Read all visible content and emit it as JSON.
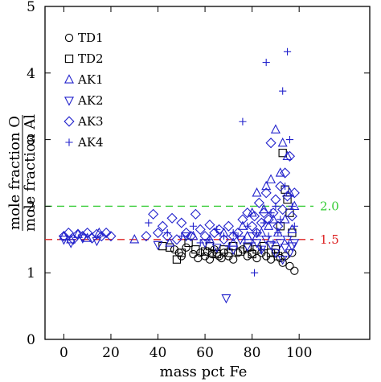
{
  "chart_data": {
    "type": "scatter",
    "xlabel": "mass pct Fe",
    "ylabel_numerator": "mole fraction O",
    "ylabel_denominator": "mole fraction Al",
    "xlim": [
      -8,
      130
    ],
    "ylim": [
      0,
      5
    ],
    "xticks": [
      0,
      20,
      40,
      60,
      80,
      100
    ],
    "yticks": [
      0,
      1,
      2,
      3,
      4,
      5
    ],
    "xtick_labels": [
      "0",
      "20",
      "40",
      "60",
      "80",
      "100"
    ],
    "ytick_labels": [
      "0",
      "1",
      "2",
      "3",
      "4",
      "5"
    ],
    "legend_position": "upper-left",
    "reference_lines": [
      {
        "y": 2.0,
        "label": "2.0",
        "color": "#33cc33"
      },
      {
        "y": 1.5,
        "label": "1.5",
        "color": "#dd2222"
      }
    ],
    "series": [
      {
        "name": "TD1",
        "marker": "circle",
        "color": "#000000",
        "points": [
          [
            47,
            1.35
          ],
          [
            49,
            1.3
          ],
          [
            50,
            1.25
          ],
          [
            52,
            1.38
          ],
          [
            55,
            1.28
          ],
          [
            57,
            1.22
          ],
          [
            58,
            1.3
          ],
          [
            60,
            1.25
          ],
          [
            61,
            1.32
          ],
          [
            62,
            1.2
          ],
          [
            63,
            1.28
          ],
          [
            64,
            1.35
          ],
          [
            65,
            1.3
          ],
          [
            66,
            1.25
          ],
          [
            67,
            1.22
          ],
          [
            68,
            1.3
          ],
          [
            70,
            1.25
          ],
          [
            72,
            1.2
          ],
          [
            74,
            1.3
          ],
          [
            76,
            1.35
          ],
          [
            78,
            1.25
          ],
          [
            80,
            1.3
          ],
          [
            82,
            1.22
          ],
          [
            84,
            1.3
          ],
          [
            86,
            1.25
          ],
          [
            88,
            1.2
          ],
          [
            90,
            1.3
          ],
          [
            92,
            1.22
          ],
          [
            93,
            1.15
          ],
          [
            94,
            1.25
          ],
          [
            96,
            1.1
          ],
          [
            97,
            1.3
          ],
          [
            98,
            1.03
          ]
        ]
      },
      {
        "name": "TD2",
        "marker": "square",
        "color": "#000000",
        "points": [
          [
            42,
            1.4
          ],
          [
            45,
            1.38
          ],
          [
            48,
            1.2
          ],
          [
            50,
            1.3
          ],
          [
            53,
            1.45
          ],
          [
            56,
            1.35
          ],
          [
            60,
            1.32
          ],
          [
            62,
            1.4
          ],
          [
            65,
            1.28
          ],
          [
            68,
            1.35
          ],
          [
            70,
            1.3
          ],
          [
            72,
            1.4
          ],
          [
            75,
            1.32
          ],
          [
            78,
            1.38
          ],
          [
            80,
            1.28
          ],
          [
            82,
            1.35
          ],
          [
            85,
            1.4
          ],
          [
            88,
            1.3
          ],
          [
            90,
            1.35
          ],
          [
            91,
            1.25
          ],
          [
            92,
            1.7
          ],
          [
            93,
            2.8
          ],
          [
            94,
            2.25
          ],
          [
            95,
            2.1
          ],
          [
            96,
            1.9
          ],
          [
            97,
            1.6
          ]
        ]
      },
      {
        "name": "AK1",
        "marker": "triangle-up",
        "color": "#2222cc",
        "points": [
          [
            0,
            1.55
          ],
          [
            3,
            1.5
          ],
          [
            6,
            1.58
          ],
          [
            10,
            1.52
          ],
          [
            15,
            1.6
          ],
          [
            30,
            1.5
          ],
          [
            45,
            1.45
          ],
          [
            55,
            1.55
          ],
          [
            62,
            1.5
          ],
          [
            68,
            1.6
          ],
          [
            72,
            1.45
          ],
          [
            76,
            1.7
          ],
          [
            78,
            1.55
          ],
          [
            80,
            1.9
          ],
          [
            82,
            2.2
          ],
          [
            84,
            1.6
          ],
          [
            85,
            1.95
          ],
          [
            86,
            2.3
          ],
          [
            87,
            1.7
          ],
          [
            88,
            2.4
          ],
          [
            89,
            1.8
          ],
          [
            90,
            3.15
          ],
          [
            91,
            1.6
          ],
          [
            92,
            2.5
          ],
          [
            93,
            2.95
          ],
          [
            94,
            1.8
          ],
          [
            95,
            2.75
          ],
          [
            96,
            2.2
          ],
          [
            97,
            1.65
          ],
          [
            98,
            2.0
          ]
        ]
      },
      {
        "name": "AK2",
        "marker": "triangle-down",
        "color": "#2222cc",
        "points": [
          [
            0,
            1.5
          ],
          [
            3,
            1.45
          ],
          [
            8,
            1.52
          ],
          [
            14,
            1.48
          ],
          [
            40,
            1.42
          ],
          [
            52,
            1.55
          ],
          [
            60,
            1.45
          ],
          [
            65,
            1.38
          ],
          [
            69,
            0.62
          ],
          [
            72,
            1.35
          ],
          [
            75,
            1.5
          ],
          [
            78,
            1.4
          ],
          [
            80,
            1.55
          ],
          [
            82,
            1.45
          ],
          [
            84,
            1.35
          ],
          [
            86,
            1.5
          ],
          [
            88,
            1.42
          ],
          [
            90,
            1.3
          ],
          [
            92,
            1.45
          ],
          [
            93,
            1.2
          ],
          [
            94,
            1.38
          ],
          [
            95,
            1.5
          ],
          [
            96,
            1.3
          ],
          [
            97,
            1.4
          ],
          [
            98,
            1.45
          ]
        ]
      },
      {
        "name": "AK3",
        "marker": "diamond",
        "color": "#2222cc",
        "points": [
          [
            0,
            1.55
          ],
          [
            2,
            1.6
          ],
          [
            4,
            1.5
          ],
          [
            6,
            1.58
          ],
          [
            8,
            1.55
          ],
          [
            10,
            1.6
          ],
          [
            12,
            1.52
          ],
          [
            14,
            1.58
          ],
          [
            16,
            1.55
          ],
          [
            18,
            1.6
          ],
          [
            20,
            1.55
          ],
          [
            35,
            1.55
          ],
          [
            38,
            1.88
          ],
          [
            40,
            1.6
          ],
          [
            42,
            1.7
          ],
          [
            44,
            1.55
          ],
          [
            46,
            1.82
          ],
          [
            48,
            1.5
          ],
          [
            50,
            1.75
          ],
          [
            52,
            1.6
          ],
          [
            54,
            1.55
          ],
          [
            56,
            1.88
          ],
          [
            58,
            1.65
          ],
          [
            60,
            1.55
          ],
          [
            62,
            1.72
          ],
          [
            64,
            1.6
          ],
          [
            66,
            1.65
          ],
          [
            68,
            1.5
          ],
          [
            70,
            1.7
          ],
          [
            72,
            1.55
          ],
          [
            74,
            1.6
          ],
          [
            76,
            1.8
          ],
          [
            78,
            1.9
          ],
          [
            80,
            1.7
          ],
          [
            81,
            1.85
          ],
          [
            82,
            1.6
          ],
          [
            83,
            2.05
          ],
          [
            84,
            1.75
          ],
          [
            85,
            1.9
          ],
          [
            86,
            2.2
          ],
          [
            87,
            1.8
          ],
          [
            88,
            2.95
          ],
          [
            89,
            1.9
          ],
          [
            90,
            2.1
          ],
          [
            91,
            1.7
          ],
          [
            92,
            2.3
          ],
          [
            93,
            1.95
          ],
          [
            94,
            2.5
          ],
          [
            95,
            2.15
          ],
          [
            96,
            2.75
          ],
          [
            97,
            1.85
          ],
          [
            98,
            2.2
          ]
        ]
      },
      {
        "name": "AK4",
        "marker": "plus",
        "color": "#2222cc",
        "points": [
          [
            36,
            1.75
          ],
          [
            44,
            1.6
          ],
          [
            50,
            1.55
          ],
          [
            55,
            1.7
          ],
          [
            58,
            1.45
          ],
          [
            62,
            1.5
          ],
          [
            65,
            1.65
          ],
          [
            68,
            1.55
          ],
          [
            70,
            1.4
          ],
          [
            72,
            1.6
          ],
          [
            74,
            1.55
          ],
          [
            76,
            3.27
          ],
          [
            77,
            1.5
          ],
          [
            78,
            1.7
          ],
          [
            80,
            1.45
          ],
          [
            81,
            1.0
          ],
          [
            82,
            1.6
          ],
          [
            84,
            1.35
          ],
          [
            85,
            1.75
          ],
          [
            86,
            4.16
          ],
          [
            87,
            1.55
          ],
          [
            88,
            1.9
          ],
          [
            89,
            1.45
          ],
          [
            90,
            2.0
          ],
          [
            91,
            1.6
          ],
          [
            92,
            1.8
          ],
          [
            93,
            3.73
          ],
          [
            94,
            2.3
          ],
          [
            95,
            4.32
          ],
          [
            96,
            3.0
          ],
          [
            97,
            2.0
          ],
          [
            98,
            1.7
          ]
        ]
      }
    ]
  }
}
